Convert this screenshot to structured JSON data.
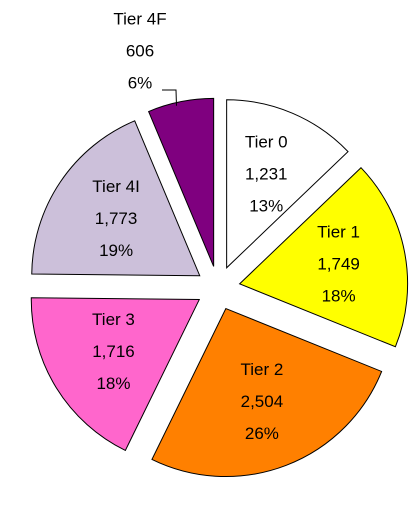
{
  "chart_data": {
    "type": "pie",
    "categories": [
      "Tier 0",
      "Tier 1",
      "Tier 2",
      "Tier 3",
      "Tier 4I",
      "Tier 4F"
    ],
    "values": [
      1231,
      1749,
      2504,
      1716,
      1773,
      606
    ],
    "value_labels": [
      "1,231",
      "1,749",
      "2,504",
      "1,716",
      "1,773",
      "606"
    ],
    "percent_labels": [
      "13%",
      "18%",
      "26%",
      "18%",
      "19%",
      "6%"
    ],
    "colors": [
      "#ffffff",
      "#ffff00",
      "#ff8000",
      "#ff66cc",
      "#ccc0da",
      "#7f007f"
    ]
  }
}
